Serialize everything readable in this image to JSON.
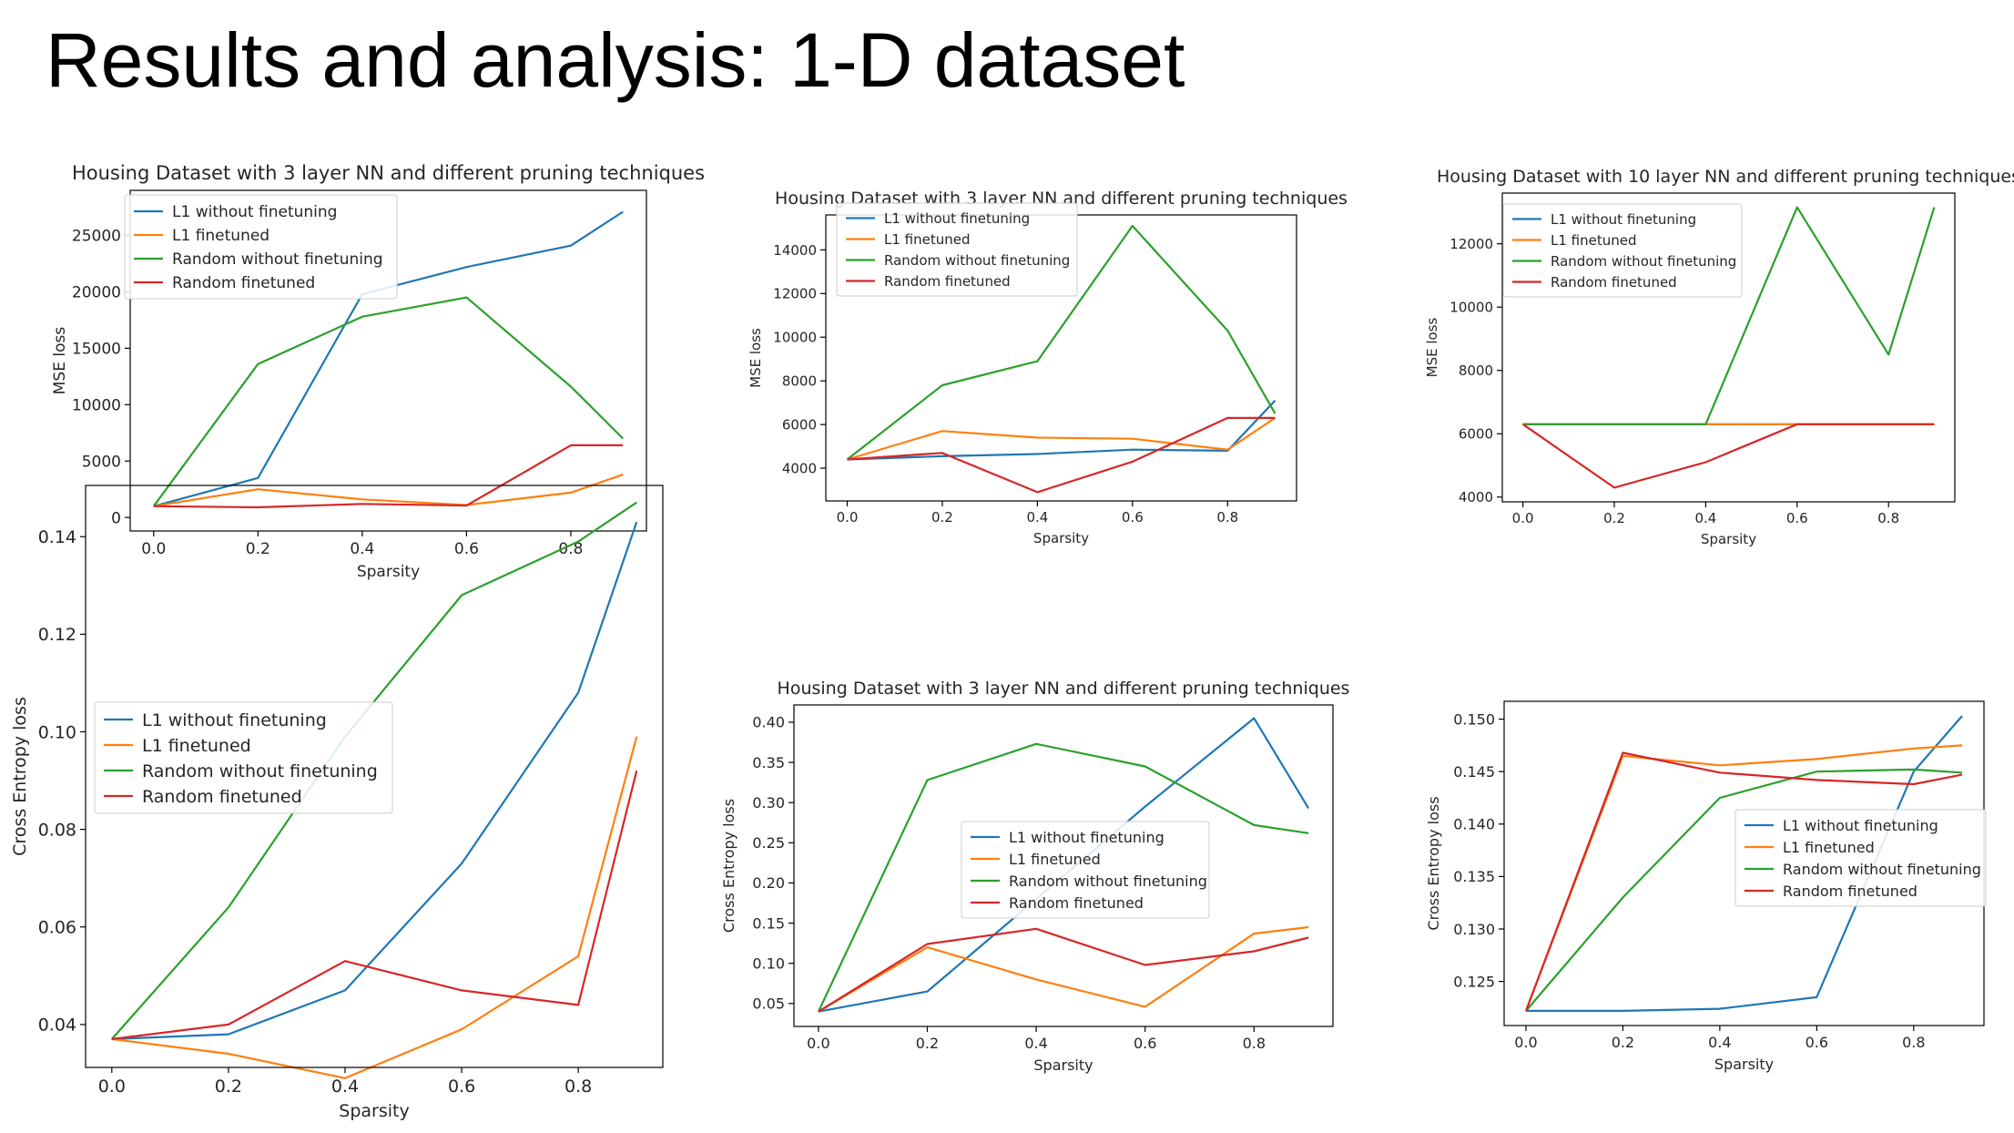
{
  "slide": {
    "title": "Results and analysis: 1-D dataset"
  },
  "colors": {
    "L1 without finetuning": "#1f77b4",
    "L1 finetuned": "#ff7f0e",
    "Random without finetuning": "#2ca02c",
    "Random finetuned": "#d62728"
  },
  "chart_data": [
    {
      "type": "line",
      "title": "Housing Dataset with 3 layer NN and different pruning techniques",
      "xlabel": "Sparsity",
      "ylabel": "MSE loss",
      "x": [
        0.0,
        0.2,
        0.4,
        0.6,
        0.8,
        0.9
      ],
      "xticks": [
        0.0,
        0.2,
        0.4,
        0.6,
        0.8
      ],
      "yticks": [
        0,
        5000,
        10000,
        15000,
        20000,
        25000
      ],
      "xlim": [
        -0.045,
        0.945
      ],
      "ylim": [
        -1200,
        29000
      ],
      "legend": "upper-left",
      "series": [
        {
          "name": "L1 without finetuning",
          "values": [
            1000,
            3500,
            19800,
            22200,
            24100,
            27100
          ]
        },
        {
          "name": "L1 finetuned",
          "values": [
            1000,
            2500,
            1600,
            1100,
            2200,
            3800
          ]
        },
        {
          "name": "Random without finetuning",
          "values": [
            1000,
            13600,
            17800,
            19500,
            11600,
            7000
          ]
        },
        {
          "name": "Random finetuned",
          "values": [
            1000,
            900,
            1200,
            1050,
            6400,
            6400
          ]
        }
      ]
    },
    {
      "type": "line",
      "title": "Housing Dataset with 3 layer NN and different pruning techniques",
      "xlabel": "Sparsity",
      "ylabel": "MSE loss",
      "x": [
        0.0,
        0.2,
        0.4,
        0.6,
        0.8,
        0.9
      ],
      "xticks": [
        0.0,
        0.2,
        0.4,
        0.6,
        0.8
      ],
      "yticks": [
        4000,
        6000,
        8000,
        10000,
        12000,
        14000
      ],
      "xlim": [
        -0.045,
        0.945
      ],
      "ylim": [
        2500,
        15600
      ],
      "legend": "upper-left",
      "series": [
        {
          "name": "L1 without finetuning",
          "values": [
            4400,
            4550,
            4650,
            4850,
            4800,
            7100
          ]
        },
        {
          "name": "L1 finetuned",
          "values": [
            4400,
            5700,
            5400,
            5350,
            4850,
            6300
          ]
        },
        {
          "name": "Random without finetuning",
          "values": [
            4400,
            7800,
            8900,
            15100,
            10300,
            6500
          ]
        },
        {
          "name": "Random finetuned",
          "values": [
            4400,
            4700,
            2900,
            4300,
            6300,
            6300
          ]
        }
      ]
    },
    {
      "type": "line",
      "title": "Housing Dataset with 10 layer NN and different pruning techniques",
      "xlabel": "Sparsity",
      "ylabel": "MSE loss",
      "x": [
        0.0,
        0.2,
        0.4,
        0.6,
        0.8,
        0.9
      ],
      "xticks": [
        0.0,
        0.2,
        0.4,
        0.6,
        0.8
      ],
      "yticks": [
        4000,
        6000,
        8000,
        10000,
        12000
      ],
      "xlim": [
        -0.045,
        0.945
      ],
      "ylim": [
        3850,
        13600
      ],
      "legend": "upper-left",
      "series": [
        {
          "name": "L1 without finetuning",
          "values": [
            6300,
            6300,
            6300,
            6300,
            6300,
            6300
          ]
        },
        {
          "name": "L1 finetuned",
          "values": [
            6300,
            6300,
            6300,
            6300,
            6300,
            6300
          ]
        },
        {
          "name": "Random without finetuning",
          "values": [
            6300,
            6300,
            6300,
            13150,
            8500,
            13150
          ]
        },
        {
          "name": "Random finetuned",
          "values": [
            6300,
            4300,
            5100,
            6300,
            6300,
            6300
          ]
        }
      ]
    },
    {
      "type": "line",
      "title": "",
      "xlabel": "Sparsity",
      "ylabel": "Cross Entropy loss",
      "x": [
        0.0,
        0.2,
        0.4,
        0.6,
        0.8,
        0.9
      ],
      "xticks": [
        0.0,
        0.2,
        0.4,
        0.6,
        0.8
      ],
      "yticks": [
        0.04,
        0.06,
        0.08,
        0.1,
        0.12,
        0.14
      ],
      "ytick_labels": [
        "0.04",
        "0.06",
        "0.08",
        "0.10",
        "0.12",
        "0.14"
      ],
      "xlim": [
        -0.045,
        0.945
      ],
      "ylim": [
        0.0312,
        0.1505
      ],
      "legend": "upper-left",
      "series": [
        {
          "name": "L1 without finetuning",
          "values": [
            0.037,
            0.038,
            0.047,
            0.073,
            0.108,
            0.143
          ]
        },
        {
          "name": "L1 finetuned",
          "values": [
            0.037,
            0.034,
            0.029,
            0.039,
            0.054,
            0.099
          ]
        },
        {
          "name": "Random without finetuning",
          "values": [
            0.037,
            0.064,
            0.099,
            0.128,
            0.139,
            0.147
          ]
        },
        {
          "name": "Random finetuned",
          "values": [
            0.037,
            0.04,
            0.053,
            0.047,
            0.044,
            0.092
          ]
        }
      ]
    },
    {
      "type": "line",
      "title": "Housing Dataset with 3 layer NN and different pruning techniques",
      "xlabel": "Sparsity",
      "ylabel": "Cross Entropy loss",
      "x": [
        0.0,
        0.2,
        0.4,
        0.6,
        0.8,
        0.9
      ],
      "xticks": [
        0.0,
        0.2,
        0.4,
        0.6,
        0.8
      ],
      "yticks": [
        0.05,
        0.1,
        0.15,
        0.2,
        0.25,
        0.3,
        0.35,
        0.4
      ],
      "ytick_labels": [
        "0.05",
        "0.10",
        "0.15",
        "0.20",
        "0.25",
        "0.30",
        "0.35",
        "0.40"
      ],
      "xlim": [
        -0.045,
        0.945
      ],
      "ylim": [
        0.0215,
        0.4215
      ],
      "legend": "center",
      "series": [
        {
          "name": "L1 without finetuning",
          "values": [
            0.04,
            0.065,
            0.18,
            0.295,
            0.405,
            0.293
          ]
        },
        {
          "name": "L1 finetuned",
          "values": [
            0.04,
            0.12,
            0.08,
            0.046,
            0.137,
            0.145
          ]
        },
        {
          "name": "Random without finetuning",
          "values": [
            0.04,
            0.328,
            0.373,
            0.345,
            0.272,
            0.262
          ]
        },
        {
          "name": "Random finetuned",
          "values": [
            0.04,
            0.124,
            0.143,
            0.098,
            0.115,
            0.132
          ]
        }
      ]
    },
    {
      "type": "line",
      "title": "",
      "xlabel": "Sparsity",
      "ylabel": "Cross Entropy loss",
      "x": [
        0.0,
        0.2,
        0.4,
        0.6,
        0.8,
        0.9
      ],
      "xticks": [
        0.0,
        0.2,
        0.4,
        0.6,
        0.8
      ],
      "yticks": [
        0.125,
        0.13,
        0.135,
        0.14,
        0.145,
        0.15
      ],
      "ytick_labels": [
        "0.125",
        "0.130",
        "0.135",
        "0.140",
        "0.145",
        "0.150"
      ],
      "xlim": [
        -0.045,
        0.945
      ],
      "ylim": [
        0.1208,
        0.1517
      ],
      "legend": "center-right",
      "series": [
        {
          "name": "L1 without finetuning",
          "values": [
            0.1222,
            0.1222,
            0.1224,
            0.1235,
            0.145,
            0.1503
          ]
        },
        {
          "name": "L1 finetuned",
          "values": [
            0.1222,
            0.1465,
            0.1456,
            0.1462,
            0.1472,
            0.1475
          ]
        },
        {
          "name": "Random without finetuning",
          "values": [
            0.1222,
            0.133,
            0.1425,
            0.145,
            0.1452,
            0.1449
          ]
        },
        {
          "name": "Random finetuned",
          "values": [
            0.1222,
            0.1468,
            0.1449,
            0.1442,
            0.1438,
            0.1447
          ]
        }
      ]
    }
  ]
}
